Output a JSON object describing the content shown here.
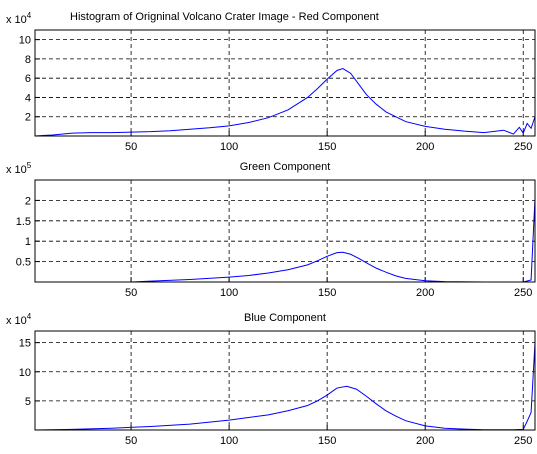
{
  "chart_data": [
    {
      "type": "line",
      "title": "Histogram of Origninal Volcano Crater Image - Red Component",
      "y_scale_label": "x 10",
      "y_scale_power": 4,
      "x": [
        1,
        5,
        10,
        20,
        30,
        40,
        50,
        60,
        70,
        80,
        90,
        100,
        110,
        120,
        130,
        140,
        145,
        150,
        155,
        158,
        162,
        166,
        170,
        175,
        180,
        190,
        200,
        210,
        220,
        230,
        240,
        245,
        248,
        250,
        252,
        254,
        256
      ],
      "series": [
        {
          "color": "#0000ff",
          "values": [
            0,
            0.05,
            0.1,
            0.3,
            0.35,
            0.35,
            0.4,
            0.45,
            0.55,
            0.7,
            0.85,
            1.05,
            1.4,
            1.9,
            2.7,
            4.0,
            4.9,
            5.9,
            6.8,
            7.0,
            6.5,
            5.4,
            4.3,
            3.3,
            2.5,
            1.5,
            1.0,
            0.7,
            0.5,
            0.35,
            0.6,
            0.2,
            0.9,
            0.3,
            1.3,
            0.8,
            2.0
          ]
        }
      ],
      "xlim": [
        1,
        256
      ],
      "xticks": [
        50,
        100,
        150,
        200,
        250
      ],
      "ylim": [
        0,
        11
      ],
      "yticks": [
        2,
        4,
        6,
        8,
        10
      ],
      "grid": true
    },
    {
      "type": "line",
      "title": "Green Component",
      "y_scale_label": "x 10",
      "y_scale_power": 5,
      "x": [
        1,
        50,
        60,
        80,
        100,
        110,
        120,
        130,
        140,
        145,
        150,
        155,
        158,
        162,
        166,
        170,
        175,
        180,
        185,
        190,
        200,
        210,
        230,
        250,
        254,
        256
      ],
      "series": [
        {
          "color": "#0000ff",
          "values": [
            0,
            0,
            0.02,
            0.06,
            0.12,
            0.16,
            0.22,
            0.3,
            0.42,
            0.52,
            0.63,
            0.72,
            0.73,
            0.68,
            0.58,
            0.47,
            0.34,
            0.24,
            0.15,
            0.09,
            0.03,
            0.01,
            0,
            0,
            0.05,
            2.05
          ]
        }
      ],
      "xlim": [
        1,
        256
      ],
      "xticks": [
        50,
        100,
        150,
        200,
        250
      ],
      "ylim": [
        0,
        2.5
      ],
      "yticks": [
        0.5,
        1,
        1.5,
        2
      ],
      "grid": true
    },
    {
      "type": "line",
      "title": "Blue Component",
      "y_scale_label": "x 10",
      "y_scale_power": 4,
      "x": [
        1,
        20,
        40,
        60,
        80,
        100,
        120,
        130,
        140,
        145,
        150,
        155,
        160,
        165,
        170,
        175,
        180,
        185,
        190,
        200,
        210,
        220,
        230,
        245,
        250,
        252,
        254,
        256
      ],
      "series": [
        {
          "color": "#0000ff",
          "values": [
            0,
            0.1,
            0.3,
            0.6,
            1.0,
            1.7,
            2.6,
            3.3,
            4.2,
            5.0,
            6.0,
            7.2,
            7.5,
            7.0,
            5.8,
            4.5,
            3.3,
            2.4,
            1.6,
            0.7,
            0.3,
            0.15,
            0.05,
            0.05,
            0.1,
            1.5,
            3.0,
            15
          ]
        }
      ],
      "xlim": [
        1,
        256
      ],
      "xticks": [
        50,
        100,
        150,
        200,
        250
      ],
      "ylim": [
        0,
        17
      ],
      "yticks": [
        5,
        10,
        15
      ],
      "grid": true
    }
  ]
}
